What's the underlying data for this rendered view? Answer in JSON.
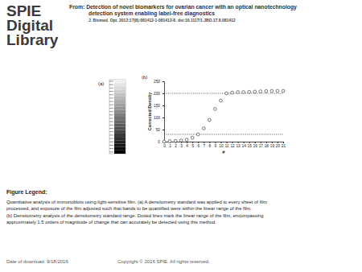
{
  "header": {
    "logo": [
      "SPIE",
      "Digital",
      "Library"
    ],
    "title": [
      "From: Detection of novel biomarkers for ovarian cancer with an optical nanotechnology",
      "detection system enabling label-free diagnostics"
    ],
    "citation": "J. Biomed. Opt. 2012;17(8):081412-1-081412-8. doi:10.1117/1.JBO.17.8.081412"
  },
  "figure": {
    "panel_a_label": "(a)",
    "panel_b_label": "(b)"
  },
  "chart_data": {
    "type": "scatter",
    "x": [
      0,
      1,
      2,
      3,
      4,
      5,
      6,
      7,
      8,
      9,
      10,
      11,
      12,
      13,
      14,
      15,
      16,
      17,
      18,
      19,
      20,
      21
    ],
    "values": [
      0,
      2,
      3,
      5,
      8,
      16,
      30,
      55,
      90,
      135,
      170,
      200,
      203,
      205,
      205,
      206,
      207,
      208,
      209,
      210,
      210,
      210
    ],
    "xlim": [
      0,
      21
    ],
    "ylim": [
      0,
      250
    ],
    "xticks": [
      0,
      1,
      2,
      3,
      4,
      5,
      6,
      7,
      8,
      9,
      10,
      11,
      12,
      13,
      14,
      15,
      16,
      17,
      18,
      19,
      20,
      21
    ],
    "yticks": [
      0,
      50,
      100,
      150,
      200,
      250
    ],
    "xlabel": "#",
    "ylabel": "Corrected Density",
    "hlines": [
      30,
      200
    ],
    "marker": "circle-open",
    "color": "#444444"
  },
  "figure_legend": {
    "heading": "Figure Legend:",
    "paragraphs": [
      [
        "Quantitative analysis of immunoblots using light-sensitive film. (a) A densitometry standard was applied to every sheet of film",
        "processed, and exposure of the film adjusted such that bands to be quantified were within the linear range of the film."
      ],
      [
        "(b) Densitometry analysis of the densitometry standard range. Dotted lines mark the linear range of the film, encompassing",
        "approximately 1.5 orders of magnitude of change that can accurately be detected using this method."
      ]
    ]
  },
  "footer": {
    "date": "Date of download:  9/18/2016",
    "copyright": "Copyright © 2016 SPIE. All rights reserved."
  }
}
